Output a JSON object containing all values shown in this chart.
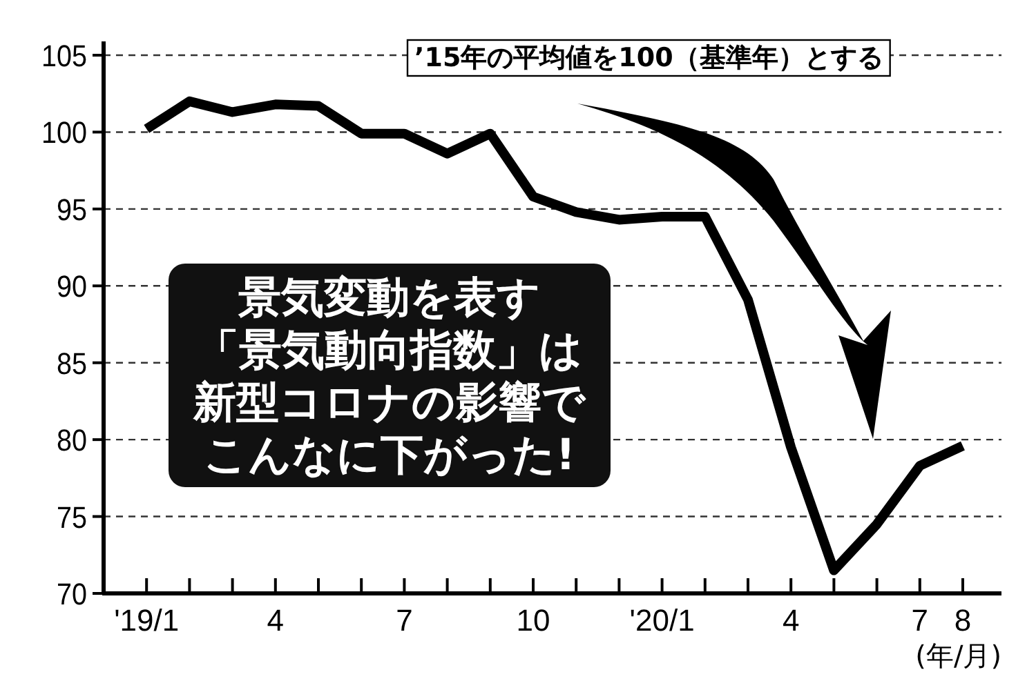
{
  "chart_data": {
    "type": "line",
    "categories": [
      "'19/1",
      null,
      null,
      "4",
      null,
      null,
      "7",
      null,
      null,
      "10",
      null,
      null,
      "'20/1",
      null,
      null,
      "4",
      null,
      null,
      "7",
      "8"
    ],
    "series": [
      {
        "color": "#000000",
        "values": [
          100.2,
          102.0,
          101.3,
          101.8,
          101.7,
          99.9,
          99.9,
          98.6,
          99.9,
          95.8,
          94.8,
          94.3,
          94.5,
          94.5,
          89.1,
          79.5,
          71.5,
          74.5,
          78.3,
          79.6
        ]
      }
    ],
    "xlabel": "(年/月)",
    "ylim": [
      70,
      105
    ],
    "yticks": [
      70,
      75,
      80,
      85,
      90,
      95,
      100,
      105
    ],
    "grid": "y",
    "marker": "none",
    "line_style": "solid",
    "annotations": [
      "’15年の平均値を100（基準年）とする",
      "景気変動を表す",
      "「景気動向指数」は",
      "新型コロナの影響で",
      "こんなに下がった!"
    ]
  }
}
